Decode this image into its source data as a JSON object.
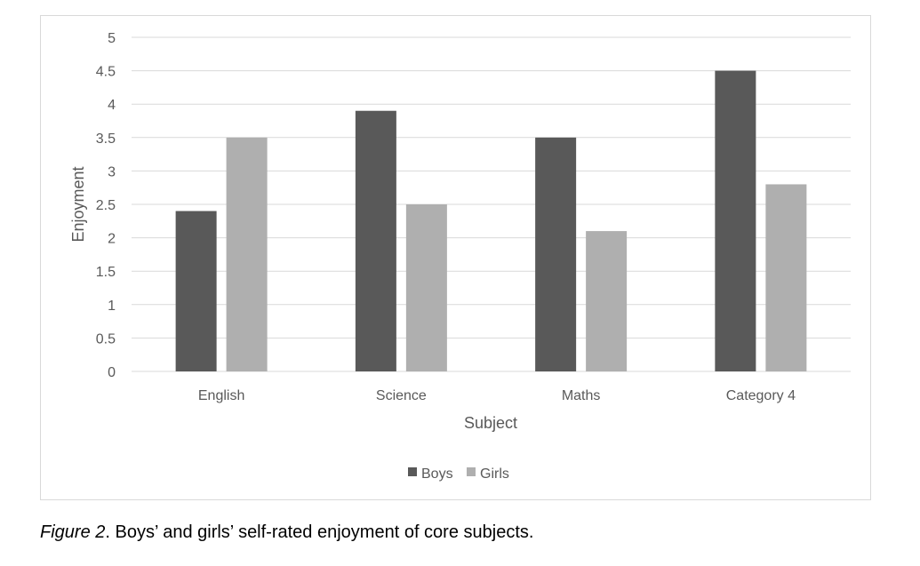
{
  "chart_data": {
    "type": "bar",
    "title": "",
    "categories": [
      "English",
      "Science",
      "Maths",
      "Category 4"
    ],
    "series": [
      {
        "name": "Boys",
        "values": [
          2.4,
          3.9,
          3.5,
          4.5
        ],
        "color": "#595959"
      },
      {
        "name": "Girls",
        "values": [
          3.5,
          2.5,
          2.1,
          2.8
        ],
        "color": "#afafaf"
      }
    ],
    "xlabel": "Subject",
    "ylabel": "Enjoyment",
    "ylim": [
      0,
      5
    ],
    "yticks": [
      "0",
      "0.5",
      "1",
      "1.5",
      "2",
      "2.5",
      "3",
      "3.5",
      "4",
      "4.5",
      "5"
    ],
    "grid": true,
    "legend_position": "bottom",
    "gridline_color": "#d9d9d9",
    "text_color": "#595959"
  },
  "caption": {
    "figure_label": "Figure 2",
    "text": ". Boys’ and girls’ self-rated enjoyment of core subjects."
  }
}
